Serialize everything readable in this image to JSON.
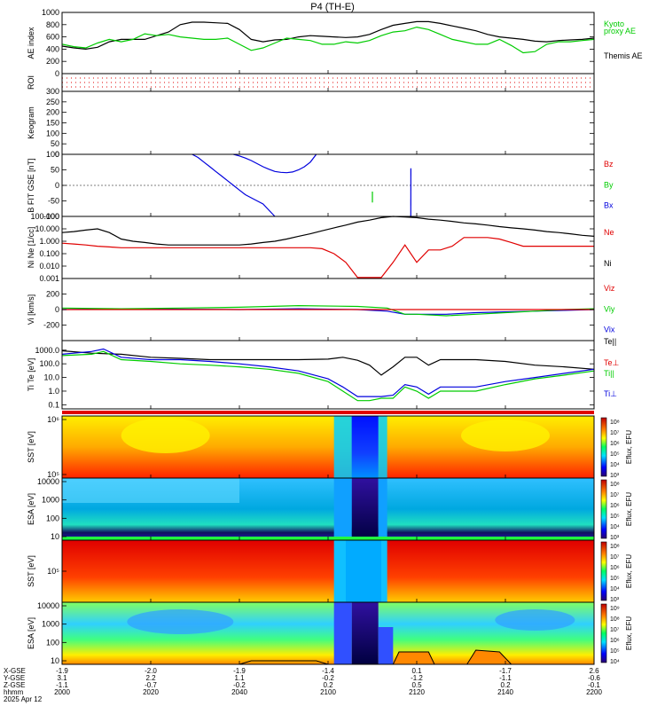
{
  "title": "P4 (TH-E)",
  "colors": {
    "black": "#000000",
    "red": "#e00000",
    "green": "#00cc00",
    "blue": "#0000dd",
    "kyoto": "#22c822"
  },
  "chart_data": [
    {
      "type": "line",
      "panel": "ae",
      "ylabel": "AE index",
      "ylim": [
        0,
        1000
      ],
      "yticks": [
        "0",
        "200",
        "400",
        "600",
        "800",
        "1000"
      ],
      "legend": [
        {
          "label": "Kyoto",
          "color": "green"
        },
        {
          "label": "proxy AE",
          "color": "green"
        },
        {
          "label": "Themis AE",
          "color": "black"
        }
      ],
      "series": [
        {
          "name": "Themis AE",
          "color": "black",
          "x": [
            0,
            4,
            8,
            12,
            16,
            20,
            24,
            28,
            32,
            36,
            40,
            44,
            48,
            52,
            56,
            60,
            64,
            68,
            72,
            76,
            80,
            84,
            88,
            92,
            96,
            100,
            104,
            108,
            112,
            116,
            120,
            124,
            128,
            132,
            136,
            140,
            144,
            148,
            152,
            156,
            160,
            164,
            168,
            172,
            176,
            180
          ],
          "y": [
            450,
            420,
            400,
            430,
            520,
            560,
            560,
            560,
            620,
            680,
            800,
            840,
            840,
            830,
            820,
            720,
            560,
            520,
            550,
            560,
            600,
            620,
            610,
            600,
            590,
            600,
            640,
            720,
            790,
            820,
            850,
            850,
            820,
            780,
            740,
            700,
            640,
            600,
            580,
            560,
            530,
            520,
            540,
            550,
            560,
            580
          ]
        },
        {
          "name": "Kyoto proxy AE",
          "color": "green",
          "x": [
            0,
            4,
            8,
            12,
            16,
            20,
            24,
            28,
            32,
            36,
            40,
            44,
            48,
            52,
            56,
            60,
            64,
            68,
            72,
            76,
            80,
            84,
            88,
            92,
            96,
            100,
            104,
            108,
            112,
            116,
            120,
            124,
            128,
            132,
            136,
            140,
            144,
            148,
            152,
            156,
            160,
            164,
            168,
            172,
            176,
            180
          ],
          "y": [
            480,
            440,
            420,
            500,
            560,
            520,
            560,
            650,
            620,
            640,
            600,
            580,
            560,
            560,
            580,
            480,
            380,
            420,
            500,
            580,
            560,
            540,
            480,
            480,
            520,
            500,
            540,
            620,
            680,
            700,
            760,
            720,
            640,
            560,
            520,
            480,
            480,
            560,
            460,
            340,
            360,
            480,
            520,
            520,
            540,
            560
          ]
        }
      ]
    },
    {
      "type": "scatter",
      "panel": "roi",
      "ylabel": "ROI",
      "note": "dotted region-of-interest flags"
    },
    {
      "type": "line",
      "panel": "keogram",
      "ylabel": "Keogram",
      "ylim": [
        0,
        300
      ],
      "yticks": [
        "0",
        "50",
        "100",
        "150",
        "200",
        "250",
        "300"
      ]
    },
    {
      "type": "line",
      "panel": "bfield",
      "ylabel": "B FIT GSE [nT]",
      "ylim": [
        -100,
        100
      ],
      "yticks": [
        "-100",
        "-50",
        "0",
        "50",
        "100"
      ],
      "legend": [
        {
          "label": "Bz",
          "color": "red"
        },
        {
          "label": "By",
          "color": "green"
        },
        {
          "label": "Bx",
          "color": "blue"
        }
      ],
      "series": [
        {
          "name": "Bx",
          "color": "blue",
          "x": [
            44,
            46,
            48,
            50,
            52,
            54,
            56,
            58,
            60,
            62,
            64,
            66,
            68,
            70,
            72,
            74,
            76,
            78,
            80,
            82
          ],
          "y": [
            100,
            90,
            75,
            60,
            45,
            30,
            15,
            0,
            -15,
            -30,
            -40,
            -50,
            -60,
            -80,
            -100,
            null,
            null,
            null,
            null,
            null
          ]
        },
        {
          "name": "Bx-arc",
          "color": "blue",
          "x": [
            58,
            60,
            62,
            64,
            66,
            68,
            70,
            72,
            74,
            76,
            78,
            80,
            82,
            84,
            86
          ],
          "y": [
            100,
            95,
            88,
            80,
            70,
            60,
            52,
            45,
            42,
            41,
            43,
            50,
            60,
            75,
            100
          ]
        },
        {
          "name": "By-spike",
          "color": "green",
          "x": [
            105,
            105.01
          ],
          "y": [
            -55,
            -20
          ]
        },
        {
          "name": "Bx-spike",
          "color": "blue",
          "x": [
            118,
            118.01
          ],
          "y": [
            -100,
            55
          ]
        }
      ]
    },
    {
      "type": "line",
      "panel": "density",
      "ylabel": "Ni Ne [1/cc]",
      "yscale": "log",
      "ylim": [
        0.001,
        100
      ],
      "yticks": [
        "0.001",
        "0.010",
        "0.100",
        "1.000",
        "10.000",
        "100.000"
      ],
      "legend": [
        {
          "label": "Ne",
          "color": "red"
        },
        {
          "label": "Ni",
          "color": "black"
        }
      ],
      "series": [
        {
          "name": "Ni",
          "color": "black",
          "x": [
            0,
            4,
            8,
            12,
            16,
            20,
            24,
            28,
            32,
            36,
            40,
            44,
            48,
            52,
            56,
            60,
            64,
            68,
            72,
            76,
            80,
            84,
            88,
            92,
            96,
            100,
            104,
            108,
            112,
            116,
            120,
            124,
            128,
            132,
            136,
            140,
            144,
            148,
            152,
            156,
            160,
            164,
            168,
            172,
            176,
            180
          ],
          "y": [
            5,
            6,
            8,
            10,
            5,
            1.5,
            1,
            0.8,
            0.6,
            0.5,
            0.5,
            0.5,
            0.5,
            0.5,
            0.5,
            0.5,
            0.6,
            0.8,
            1,
            1.5,
            2.5,
            4,
            7,
            12,
            20,
            35,
            50,
            80,
            100,
            90,
            80,
            60,
            50,
            40,
            30,
            25,
            20,
            15,
            12,
            10,
            8,
            6,
            5,
            4,
            3,
            2.5
          ]
        },
        {
          "name": "Ne",
          "color": "red",
          "x": [
            0,
            4,
            8,
            12,
            16,
            20,
            24,
            28,
            32,
            36,
            40,
            44,
            48,
            52,
            56,
            60,
            64,
            68,
            72,
            76,
            80,
            84,
            88,
            92,
            96,
            100,
            104,
            108,
            112,
            116,
            120,
            124,
            128,
            132,
            136,
            140,
            144,
            148,
            152,
            156,
            160,
            164,
            168,
            172,
            176,
            180
          ],
          "y": [
            0.7,
            0.6,
            0.5,
            0.4,
            0.35,
            0.3,
            0.3,
            0.3,
            0.3,
            0.3,
            0.3,
            0.3,
            0.3,
            0.3,
            0.3,
            0.3,
            0.3,
            0.3,
            0.3,
            0.3,
            0.3,
            0.3,
            0.25,
            0.1,
            0.02,
            0.0012,
            0.0012,
            0.0012,
            0.02,
            0.5,
            0.02,
            0.2,
            0.2,
            0.4,
            2,
            2,
            2,
            1.5,
            0.8,
            0.4,
            0.4,
            0.4,
            0.4,
            0.4,
            0.4,
            0.4
          ]
        }
      ]
    },
    {
      "type": "line",
      "panel": "velocity",
      "ylabel": "Vi [km/s]",
      "ylim": [
        -400,
        400
      ],
      "yticks": [
        "-200",
        "0",
        "200"
      ],
      "legend": [
        {
          "label": "Viz",
          "color": "red"
        },
        {
          "label": "Viy",
          "color": "green"
        },
        {
          "label": "Vix",
          "color": "blue"
        }
      ],
      "series": [
        {
          "name": "Vix",
          "color": "blue",
          "x": [
            0,
            20,
            40,
            60,
            80,
            100,
            110,
            116,
            120,
            130,
            140,
            150,
            160,
            170,
            180
          ],
          "y": [
            0,
            10,
            5,
            0,
            10,
            0,
            -20,
            -60,
            -60,
            -60,
            -40,
            -30,
            -20,
            -10,
            0
          ]
        },
        {
          "name": "Viy",
          "color": "green",
          "x": [
            0,
            20,
            40,
            60,
            80,
            100,
            110,
            116,
            120,
            130,
            140,
            150,
            160,
            170,
            180
          ],
          "y": [
            20,
            10,
            20,
            30,
            50,
            40,
            20,
            -60,
            -60,
            -80,
            -60,
            -40,
            -20,
            0,
            10
          ]
        },
        {
          "name": "Viz",
          "color": "red",
          "x": [
            0,
            20,
            40,
            60,
            80,
            100,
            110,
            116,
            120,
            130,
            140,
            150,
            160,
            170,
            180
          ],
          "y": [
            0,
            0,
            0,
            0,
            0,
            0,
            0,
            0,
            0,
            0,
            0,
            0,
            0,
            0,
            0
          ]
        }
      ]
    },
    {
      "type": "line",
      "panel": "temperature",
      "ylabel": "Ti Te [eV]",
      "yscale": "log",
      "ylim": [
        0.05,
        5000
      ],
      "yticks": [
        "0.1",
        "1.0",
        "10.0",
        "100.0",
        "1000.0"
      ],
      "legend": [
        {
          "label": "Te||",
          "color": "black"
        },
        {
          "label": "Te⊥",
          "color": "red"
        },
        {
          "label": "Ti||",
          "color": "green"
        },
        {
          "label": "Ti⊥",
          "color": "blue"
        }
      ],
      "series": [
        {
          "name": "Te||",
          "color": "black",
          "x": [
            0,
            10,
            20,
            30,
            40,
            50,
            60,
            70,
            80,
            90,
            95,
            100,
            104,
            108,
            112,
            116,
            120,
            124,
            128,
            132,
            136,
            140,
            150,
            160,
            170,
            180
          ],
          "y": [
            900,
            600,
            500,
            300,
            250,
            200,
            200,
            200,
            200,
            220,
            300,
            180,
            80,
            15,
            60,
            300,
            300,
            80,
            200,
            200,
            200,
            200,
            150,
            80,
            60,
            40
          ]
        },
        {
          "name": "Ti⊥",
          "color": "blue",
          "x": [
            0,
            10,
            14,
            20,
            30,
            40,
            50,
            60,
            70,
            80,
            90,
            95,
            100,
            104,
            108,
            112,
            116,
            120,
            124,
            128,
            136,
            140,
            150,
            160,
            170,
            180
          ],
          "y": [
            500,
            800,
            1200,
            300,
            200,
            200,
            150,
            100,
            60,
            30,
            8,
            2,
            0.4,
            0.4,
            0.4,
            0.5,
            3,
            2,
            0.6,
            2,
            2,
            2,
            5,
            10,
            20,
            40
          ]
        },
        {
          "name": "Ti||",
          "color": "green",
          "x": [
            0,
            10,
            14,
            20,
            30,
            40,
            50,
            60,
            70,
            80,
            90,
            95,
            100,
            104,
            108,
            112,
            116,
            120,
            124,
            128,
            136,
            140,
            150,
            160,
            170,
            180
          ],
          "y": [
            400,
            500,
            800,
            200,
            150,
            100,
            80,
            60,
            40,
            20,
            5,
            1,
            0.2,
            0.2,
            0.3,
            0.3,
            2,
            1,
            0.3,
            1,
            1,
            1,
            3,
            8,
            15,
            30
          ]
        }
      ]
    },
    {
      "type": "heatmap",
      "panel": "sst-ions",
      "ylabel": "SST [eV]",
      "yticks": [
        "10⁵",
        "10⁶"
      ],
      "colorbar_label": "Eflux, EFU",
      "colorbar_ticks": [
        "10⁸",
        "10⁷",
        "10⁶",
        "10⁵",
        "10⁴",
        "10³"
      ]
    },
    {
      "type": "heatmap",
      "panel": "esa-ions",
      "ylabel": "ESA [eV]",
      "yticks": [
        "10",
        "100",
        "1000",
        "10000"
      ],
      "colorbar_label": "Eflux, EFU",
      "colorbar_ticks": [
        "10⁸",
        "10⁷",
        "10⁶",
        "10⁵",
        "10⁴",
        "10³"
      ]
    },
    {
      "type": "heatmap",
      "panel": "sst-electrons",
      "ylabel": "SST [eV]",
      "yticks": [
        "10⁵"
      ],
      "colorbar_label": "Eflux, EFU",
      "colorbar_ticks": [
        "10⁸",
        "10⁷",
        "10⁶",
        "10⁵",
        "10⁴",
        "10³"
      ]
    },
    {
      "type": "heatmap",
      "panel": "esa-electrons",
      "ylabel": "ESA [eV]",
      "yticks": [
        "10",
        "100",
        "1000",
        "10000"
      ],
      "colorbar_label": "Eflux, EFU",
      "colorbar_ticks": [
        "10⁹",
        "10⁸",
        "10⁷",
        "10⁶",
        "10⁵",
        "10⁴"
      ]
    }
  ],
  "xaxis": {
    "row_labels": [
      "X-GSE",
      "Y-GSE",
      "Z-GSE",
      "hhmm",
      "2025 Apr 12"
    ],
    "ticks": [
      {
        "x": "-1.9",
        "y": "3.1",
        "z": "-1.1",
        "t": "2000"
      },
      {
        "x": "-2.0",
        "y": "2.2",
        "z": "-0.7",
        "t": "2020"
      },
      {
        "x": "-1.9",
        "y": "1.1",
        "z": "-0.2",
        "t": "2040"
      },
      {
        "x": "-1.4",
        "y": "-0.2",
        "z": "0.2",
        "t": "2100"
      },
      {
        "x": "0.1",
        "y": "-1.2",
        "z": "0.5",
        "t": "2120"
      },
      {
        "x": "-1.7",
        "y": "-1.1",
        "z": "0.2",
        "t": "2140"
      },
      {
        "x": "2.6",
        "y": "-0.6",
        "z": "-0.1",
        "t": "2200"
      }
    ]
  }
}
